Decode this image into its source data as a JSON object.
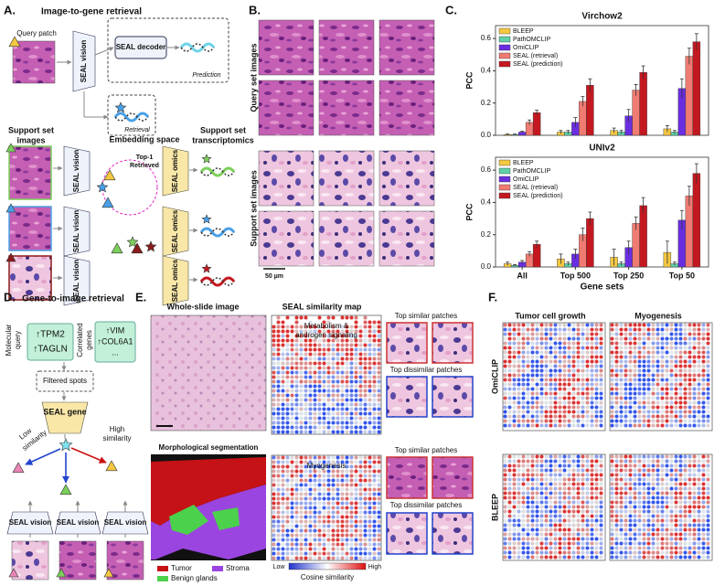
{
  "chart_data": [
    {
      "type": "bar",
      "title": "Virchow2",
      "ylabel": "PCC",
      "ylim": [
        0,
        0.68
      ],
      "yticks": [
        {
          "value": 0,
          "label": "0.0"
        },
        0.2,
        0.4,
        0.6
      ],
      "legend": "upper left",
      "series": [
        {
          "name": "BLEEP",
          "color": "#f5c842",
          "values": [
            0.005,
            0.02,
            0.03,
            0.04
          ],
          "errors": [
            0.003,
            0.01,
            0.015,
            0.02
          ]
        },
        {
          "name": "PathOMCLIP",
          "color": "#5fd1a8",
          "values": [
            0.005,
            0.02,
            0.02,
            0.02
          ],
          "errors": [
            0.003,
            0.01,
            0.01,
            0.01
          ]
        },
        {
          "name": "OmiCLIP",
          "color": "#6a2ee0",
          "values": [
            0.02,
            0.08,
            0.12,
            0.29
          ],
          "errors": [
            0.005,
            0.03,
            0.04,
            0.06
          ]
        },
        {
          "name": "SEAL (retrieval)",
          "color": "#f07b72",
          "values": [
            0.08,
            0.21,
            0.28,
            0.49
          ],
          "errors": [
            0.015,
            0.03,
            0.035,
            0.05
          ]
        },
        {
          "name": "SEAL (prediction)",
          "color": "#c41820",
          "values": [
            0.14,
            0.31,
            0.39,
            0.58
          ],
          "errors": [
            0.015,
            0.04,
            0.04,
            0.05
          ]
        }
      ]
    },
    {
      "type": "bar",
      "title": "UNIv2",
      "ylabel": "PCC",
      "xlabel": "Gene sets",
      "ylim": [
        0,
        0.68
      ],
      "categories": [
        "All",
        "Top 500",
        "Top 250",
        "Top 50"
      ],
      "yticks": [
        {
          "value": 0,
          "label": "0.0"
        },
        0.2,
        0.4,
        0.6
      ],
      "legend": "upper left",
      "series": [
        {
          "name": "BLEEP",
          "color": "#f5c842",
          "values": [
            0.02,
            0.05,
            0.06,
            0.09
          ],
          "errors": [
            0.01,
            0.03,
            0.05,
            0.07
          ]
        },
        {
          "name": "PathOMCLIP",
          "color": "#5fd1a8",
          "values": [
            0.01,
            0.02,
            0.02,
            0.02
          ],
          "errors": [
            0.005,
            0.01,
            0.01,
            0.01
          ]
        },
        {
          "name": "OmiCLIP",
          "color": "#6a2ee0",
          "values": [
            0.03,
            0.08,
            0.12,
            0.29
          ],
          "errors": [
            0.01,
            0.03,
            0.04,
            0.06
          ]
        },
        {
          "name": "SEAL (retrieval)",
          "color": "#f07b72",
          "values": [
            0.08,
            0.2,
            0.27,
            0.44
          ],
          "errors": [
            0.015,
            0.04,
            0.04,
            0.06
          ]
        },
        {
          "name": "SEAL (prediction)",
          "color": "#c41820",
          "values": [
            0.14,
            0.3,
            0.38,
            0.58
          ],
          "errors": [
            0.02,
            0.04,
            0.05,
            0.06
          ]
        }
      ]
    }
  ],
  "panel_a": {
    "label": "A.",
    "title": "Image-to-gene retrieval",
    "query_patch": "Query patch",
    "vision": [
      "SEAL vision",
      "SEAL vision",
      "SEAL vision",
      "SEAL vision"
    ],
    "decoder": "SEAL decoder",
    "prediction": "Prediction",
    "retrieval": "Retrieval",
    "support_images": [
      "Support set",
      "images"
    ],
    "embedding_space": "Embedding space",
    "top1": [
      "Top-1",
      "Retrieved"
    ],
    "support_transcriptomics": [
      "Support set",
      "transcriptomics"
    ],
    "omics": [
      "SEAL omics",
      "SEAL omics",
      "SEAL omics"
    ]
  },
  "panel_b": {
    "label": "B.",
    "query_set": "Query set images",
    "support_set": "Support set images",
    "scale": "50 µm"
  },
  "panel_c": {
    "label": "C."
  },
  "panel_d": {
    "label": "D.",
    "title": "Gene-to-image retrieval",
    "molecular_query": [
      "Molecular",
      "query"
    ],
    "query_genes": [
      "↑TPM2",
      "↑TAGLN"
    ],
    "correlated": [
      "Correlated",
      "genes"
    ],
    "correlated_genes": [
      "↑VIM",
      "↑COL6A1",
      "..."
    ],
    "filtered": "Filtered spots",
    "gene": "SEAL gene",
    "high": [
      "High",
      "similarity"
    ],
    "low": [
      "Low",
      "similarity"
    ],
    "vision": [
      "SEAL vision",
      "SEAL vision",
      "SEAL vision"
    ]
  },
  "panel_e": {
    "label": "E.",
    "wsi": "Whole-slide image",
    "map": "SEAL similarity map",
    "pathway1": [
      "Metabolism &",
      "androgen signaling"
    ],
    "pathway2": "Myogenesis",
    "similar": [
      "Top similar patches",
      "Top similar patches"
    ],
    "dissimilar": [
      "Top dissimilar patches",
      "Top dissimilar patches"
    ],
    "segmentation": "Morphological segmentation",
    "legend": [
      "Tumor",
      "Stroma",
      "Benign glands"
    ],
    "low": "Low",
    "high": "High",
    "colorbar": "Cosine similarity"
  },
  "panel_f": {
    "label": "F.",
    "cols": [
      "Tumor cell growth",
      "Myogenesis"
    ],
    "rows": [
      "OmiCLIP",
      "BLEEP"
    ]
  }
}
